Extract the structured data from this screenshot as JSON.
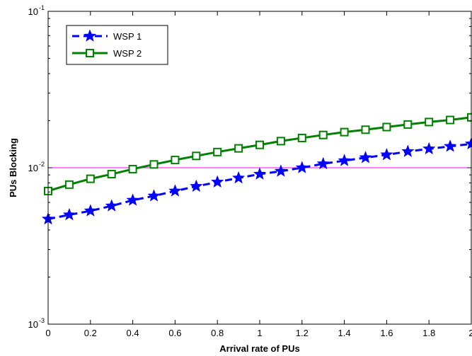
{
  "chart_data": {
    "type": "line",
    "title": "",
    "xlabel": "Arrival rate of PUs",
    "ylabel": "PUs Blocking",
    "xlim": [
      0,
      2
    ],
    "ylim": [
      0.001,
      0.1
    ],
    "yscale": "log",
    "grid": false,
    "legend_position": "top-left",
    "x_ticks": [
      "0",
      "0.2",
      "0.4",
      "0.6",
      "0.8",
      "1",
      "1.2",
      "1.4",
      "1.6",
      "1.8",
      "2"
    ],
    "y_ticks": [
      {
        "value": 0.1,
        "base": "10",
        "exp": "-1"
      },
      {
        "value": 0.01,
        "base": "10",
        "exp": "-2"
      },
      {
        "value": 0.001,
        "base": "10",
        "exp": "-3"
      }
    ],
    "x": [
      0,
      0.1,
      0.2,
      0.3,
      0.4,
      0.5,
      0.6,
      0.7,
      0.8,
      0.9,
      1.0,
      1.1,
      1.2,
      1.3,
      1.4,
      1.5,
      1.6,
      1.7,
      1.8,
      1.9,
      2.0
    ],
    "series": [
      {
        "name": "WSP 1",
        "color": "#0000ff",
        "line_style": "dashed",
        "marker": "star",
        "values": [
          0.0047,
          0.005,
          0.0053,
          0.0057,
          0.0062,
          0.0066,
          0.0071,
          0.0076,
          0.0081,
          0.0086,
          0.0091,
          0.0095,
          0.01,
          0.0106,
          0.0111,
          0.0116,
          0.0121,
          0.0127,
          0.0132,
          0.0137,
          0.0142
        ]
      },
      {
        "name": "WSP 2",
        "color": "#008000",
        "line_style": "solid",
        "marker": "square",
        "values": [
          0.0071,
          0.0078,
          0.0085,
          0.0091,
          0.0098,
          0.0105,
          0.0112,
          0.0119,
          0.0126,
          0.0133,
          0.014,
          0.0148,
          0.0155,
          0.0162,
          0.0169,
          0.0175,
          0.0182,
          0.0189,
          0.0196,
          0.0202,
          0.021
        ]
      }
    ],
    "reference_line": {
      "y": 0.01,
      "color": "#ff00ff"
    }
  }
}
